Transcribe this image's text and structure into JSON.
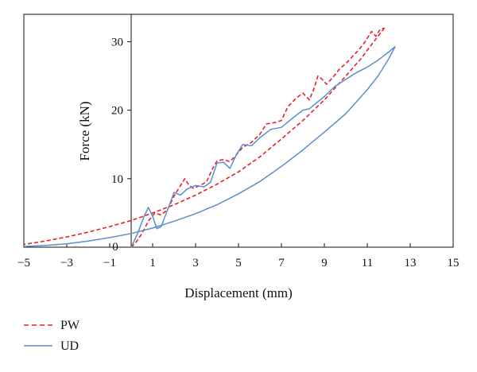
{
  "chart_data": {
    "type": "line",
    "xlabel": "Displacement (mm)",
    "ylabel": "Force (kN)",
    "xlim": [
      -5,
      15
    ],
    "ylim": [
      0,
      34
    ],
    "x_ticks": [
      -5,
      -3,
      -1,
      1,
      3,
      5,
      7,
      9,
      11,
      13,
      15
    ],
    "y_ticks": [
      0,
      10,
      20,
      30
    ],
    "y_zero_label": "0",
    "grid": false,
    "legend_position": "bottom-left",
    "series": [
      {
        "name": "PW",
        "color": "#e8202a",
        "line_style": "dashed",
        "loading": [
          [
            0,
            0
          ],
          [
            0.2,
            0.6
          ],
          [
            0.5,
            2.0
          ],
          [
            0.8,
            3.8
          ],
          [
            1.1,
            5.0
          ],
          [
            1.4,
            4.7
          ],
          [
            1.7,
            5.5
          ],
          [
            2.0,
            7.5
          ],
          [
            2.3,
            9.0
          ],
          [
            2.5,
            10.0
          ],
          [
            2.7,
            9.0
          ],
          [
            2.9,
            8.6
          ],
          [
            3.2,
            9.0
          ],
          [
            3.5,
            9.5
          ],
          [
            3.8,
            11.5
          ],
          [
            4.0,
            12.6
          ],
          [
            4.3,
            12.8
          ],
          [
            4.6,
            12.5
          ],
          [
            4.9,
            13.5
          ],
          [
            5.2,
            14.6
          ],
          [
            5.6,
            15.3
          ],
          [
            6.0,
            16.5
          ],
          [
            6.3,
            18.0
          ],
          [
            6.7,
            18.2
          ],
          [
            7.0,
            18.5
          ],
          [
            7.3,
            20.5
          ],
          [
            7.7,
            21.8
          ],
          [
            8.0,
            22.5
          ],
          [
            8.3,
            21.5
          ],
          [
            8.5,
            23.0
          ],
          [
            8.7,
            25.0
          ],
          [
            8.9,
            24.5
          ],
          [
            9.1,
            23.8
          ],
          [
            9.4,
            24.8
          ],
          [
            9.7,
            26.0
          ],
          [
            10.0,
            26.8
          ],
          [
            10.3,
            27.8
          ],
          [
            10.6,
            28.8
          ],
          [
            10.9,
            30.0
          ],
          [
            11.2,
            31.5
          ],
          [
            11.4,
            30.8
          ],
          [
            11.6,
            31.8
          ],
          [
            11.8,
            32.0
          ]
        ],
        "unloading": [
          [
            11.8,
            32.0
          ],
          [
            11.3,
            30.0
          ],
          [
            10.7,
            27.5
          ],
          [
            10.0,
            25.0
          ],
          [
            9.0,
            21.5
          ],
          [
            8.0,
            18.5
          ],
          [
            7.0,
            15.8
          ],
          [
            6.0,
            13.2
          ],
          [
            5.0,
            11.0
          ],
          [
            4.0,
            9.2
          ],
          [
            3.0,
            7.6
          ],
          [
            2.0,
            6.2
          ],
          [
            1.0,
            5.0
          ],
          [
            0.0,
            3.9
          ],
          [
            -1.0,
            3.0
          ],
          [
            -2.0,
            2.2
          ],
          [
            -3.0,
            1.5
          ],
          [
            -4.0,
            0.9
          ],
          [
            -5.0,
            0.4
          ]
        ]
      },
      {
        "name": "UD",
        "color": "#5b8fca",
        "line_style": "solid",
        "loading": [
          [
            0,
            0
          ],
          [
            0.3,
            2.0
          ],
          [
            0.6,
            4.5
          ],
          [
            0.8,
            5.8
          ],
          [
            1.0,
            4.5
          ],
          [
            1.2,
            2.7
          ],
          [
            1.4,
            3.0
          ],
          [
            1.7,
            5.5
          ],
          [
            2.0,
            8.0
          ],
          [
            2.3,
            7.6
          ],
          [
            2.6,
            8.5
          ],
          [
            3.0,
            9.0
          ],
          [
            3.4,
            8.8
          ],
          [
            3.7,
            9.5
          ],
          [
            4.0,
            12.3
          ],
          [
            4.3,
            12.4
          ],
          [
            4.6,
            11.5
          ],
          [
            4.9,
            13.5
          ],
          [
            5.2,
            15.0
          ],
          [
            5.6,
            14.8
          ],
          [
            6.0,
            16.0
          ],
          [
            6.5,
            17.2
          ],
          [
            7.0,
            17.5
          ],
          [
            7.5,
            18.8
          ],
          [
            8.0,
            20.0
          ],
          [
            8.3,
            20.2
          ],
          [
            8.6,
            21.0
          ],
          [
            9.0,
            22.0
          ],
          [
            9.5,
            23.5
          ],
          [
            10.0,
            24.5
          ],
          [
            10.5,
            25.5
          ],
          [
            11.0,
            26.3
          ],
          [
            11.5,
            27.3
          ],
          [
            12.0,
            28.5
          ],
          [
            12.3,
            29.3
          ]
        ],
        "unloading": [
          [
            12.3,
            29.3
          ],
          [
            12.0,
            27.5
          ],
          [
            11.5,
            25.0
          ],
          [
            11.0,
            23.0
          ],
          [
            10.0,
            19.5
          ],
          [
            9.0,
            16.8
          ],
          [
            8.0,
            14.2
          ],
          [
            7.0,
            11.8
          ],
          [
            6.0,
            9.6
          ],
          [
            5.0,
            7.8
          ],
          [
            4.0,
            6.2
          ],
          [
            3.0,
            4.9
          ],
          [
            2.0,
            3.8
          ],
          [
            1.0,
            2.8
          ],
          [
            0.0,
            2.0
          ],
          [
            -1.0,
            1.4
          ],
          [
            -2.0,
            0.9
          ],
          [
            -3.0,
            0.5
          ],
          [
            -4.0,
            0.25
          ],
          [
            -5.0,
            0.1
          ]
        ]
      }
    ]
  }
}
